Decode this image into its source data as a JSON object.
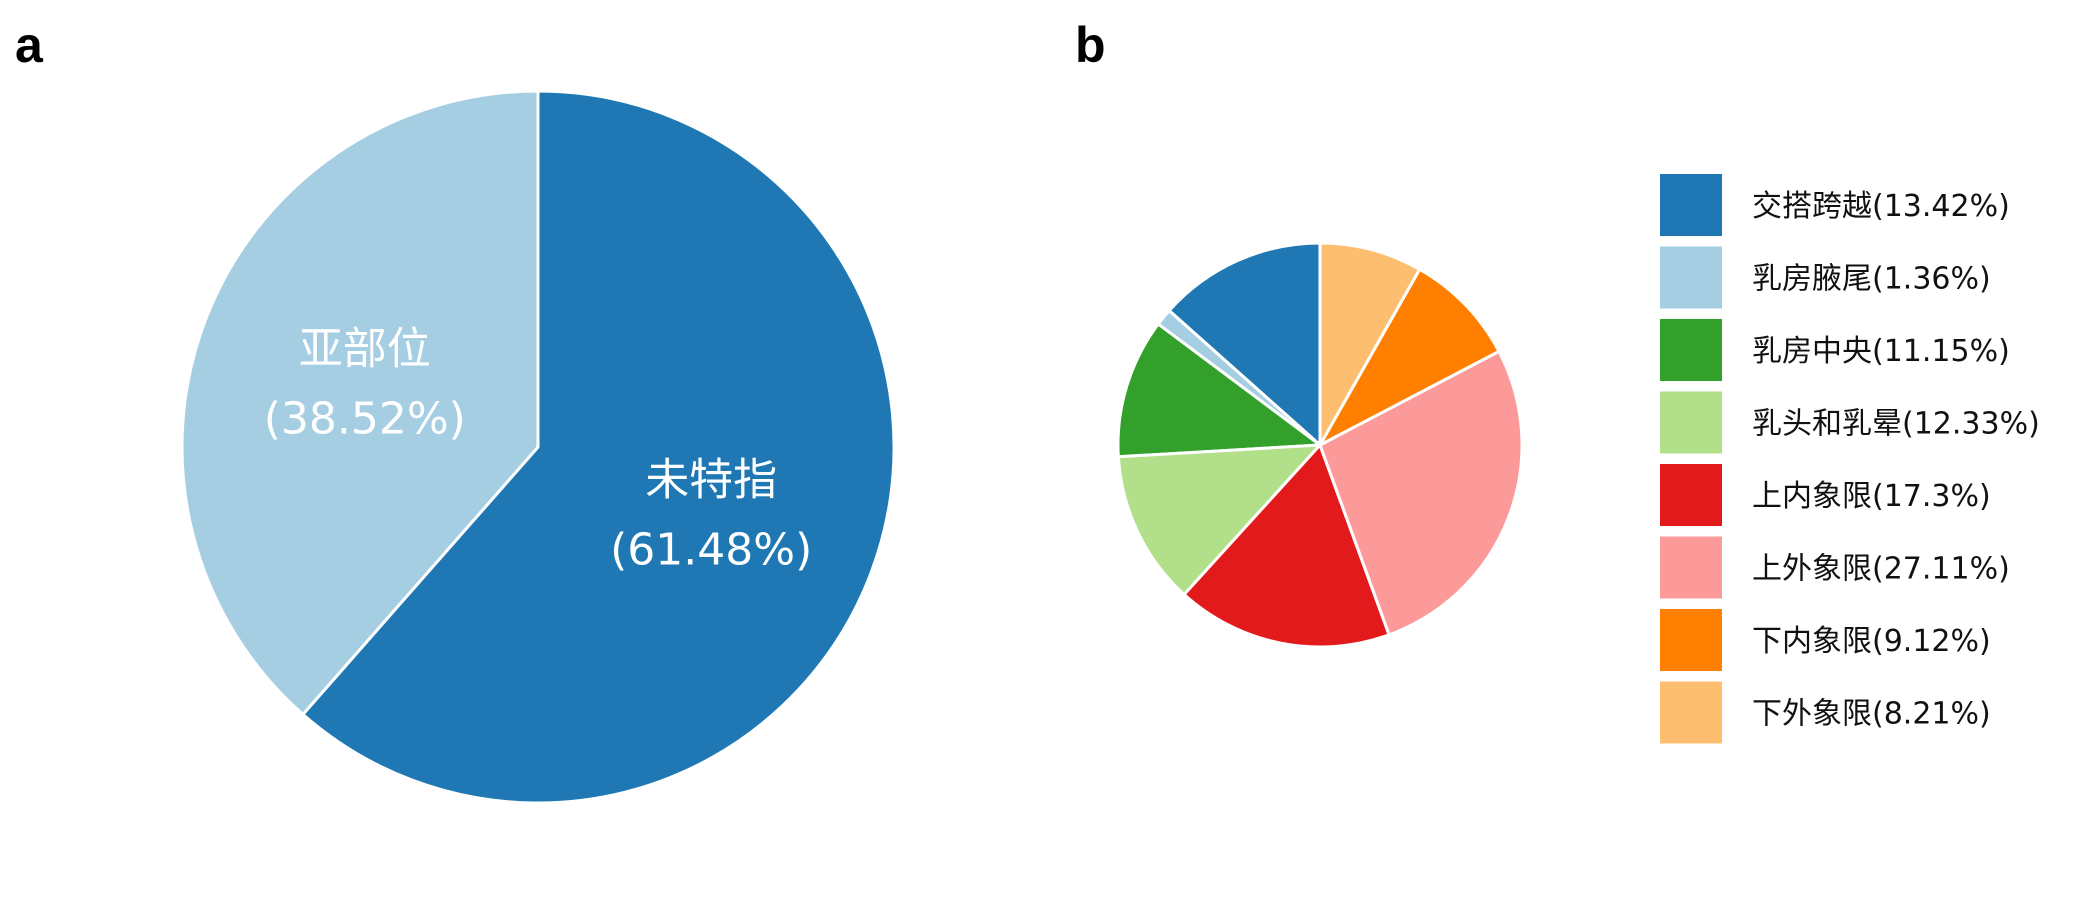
{
  "chart_data": [
    {
      "panel": "a",
      "type": "pie",
      "slices": [
        {
          "label": "未特指",
          "percent_text": "(61.48%)",
          "value": 61.48,
          "color": "#1f78b4"
        },
        {
          "label": "亚部位",
          "percent_text": "(38.52%)",
          "value": 38.52,
          "color": "#a6cee3"
        }
      ],
      "start_angle_deg": 0,
      "direction": "clockwise"
    },
    {
      "panel": "b",
      "type": "pie",
      "slices": [
        {
          "label": "交搭跨越(13.42%)",
          "value": 13.42,
          "color": "#1f78b4"
        },
        {
          "label": "乳房腋尾(1.36%)",
          "value": 1.36,
          "color": "#a6cee3"
        },
        {
          "label": "乳房中央(11.15%)",
          "value": 11.15,
          "color": "#33a02c"
        },
        {
          "label": "乳头和乳晕(12.33%)",
          "value": 12.33,
          "color": "#b2df8a"
        },
        {
          "label": "上内象限(17.3%)",
          "value": 17.3,
          "color": "#e31a1c"
        },
        {
          "label": "上外象限(27.11%)",
          "value": 27.11,
          "color": "#fb9a99"
        },
        {
          "label": "下内象限(9.12%)",
          "value": 9.12,
          "color": "#ff7f00"
        },
        {
          "label": "下外象限(8.21%)",
          "value": 8.21,
          "color": "#fdbf6f"
        }
      ],
      "start_angle_deg": 0,
      "direction": "counterclockwise",
      "legend_position": "right"
    }
  ]
}
